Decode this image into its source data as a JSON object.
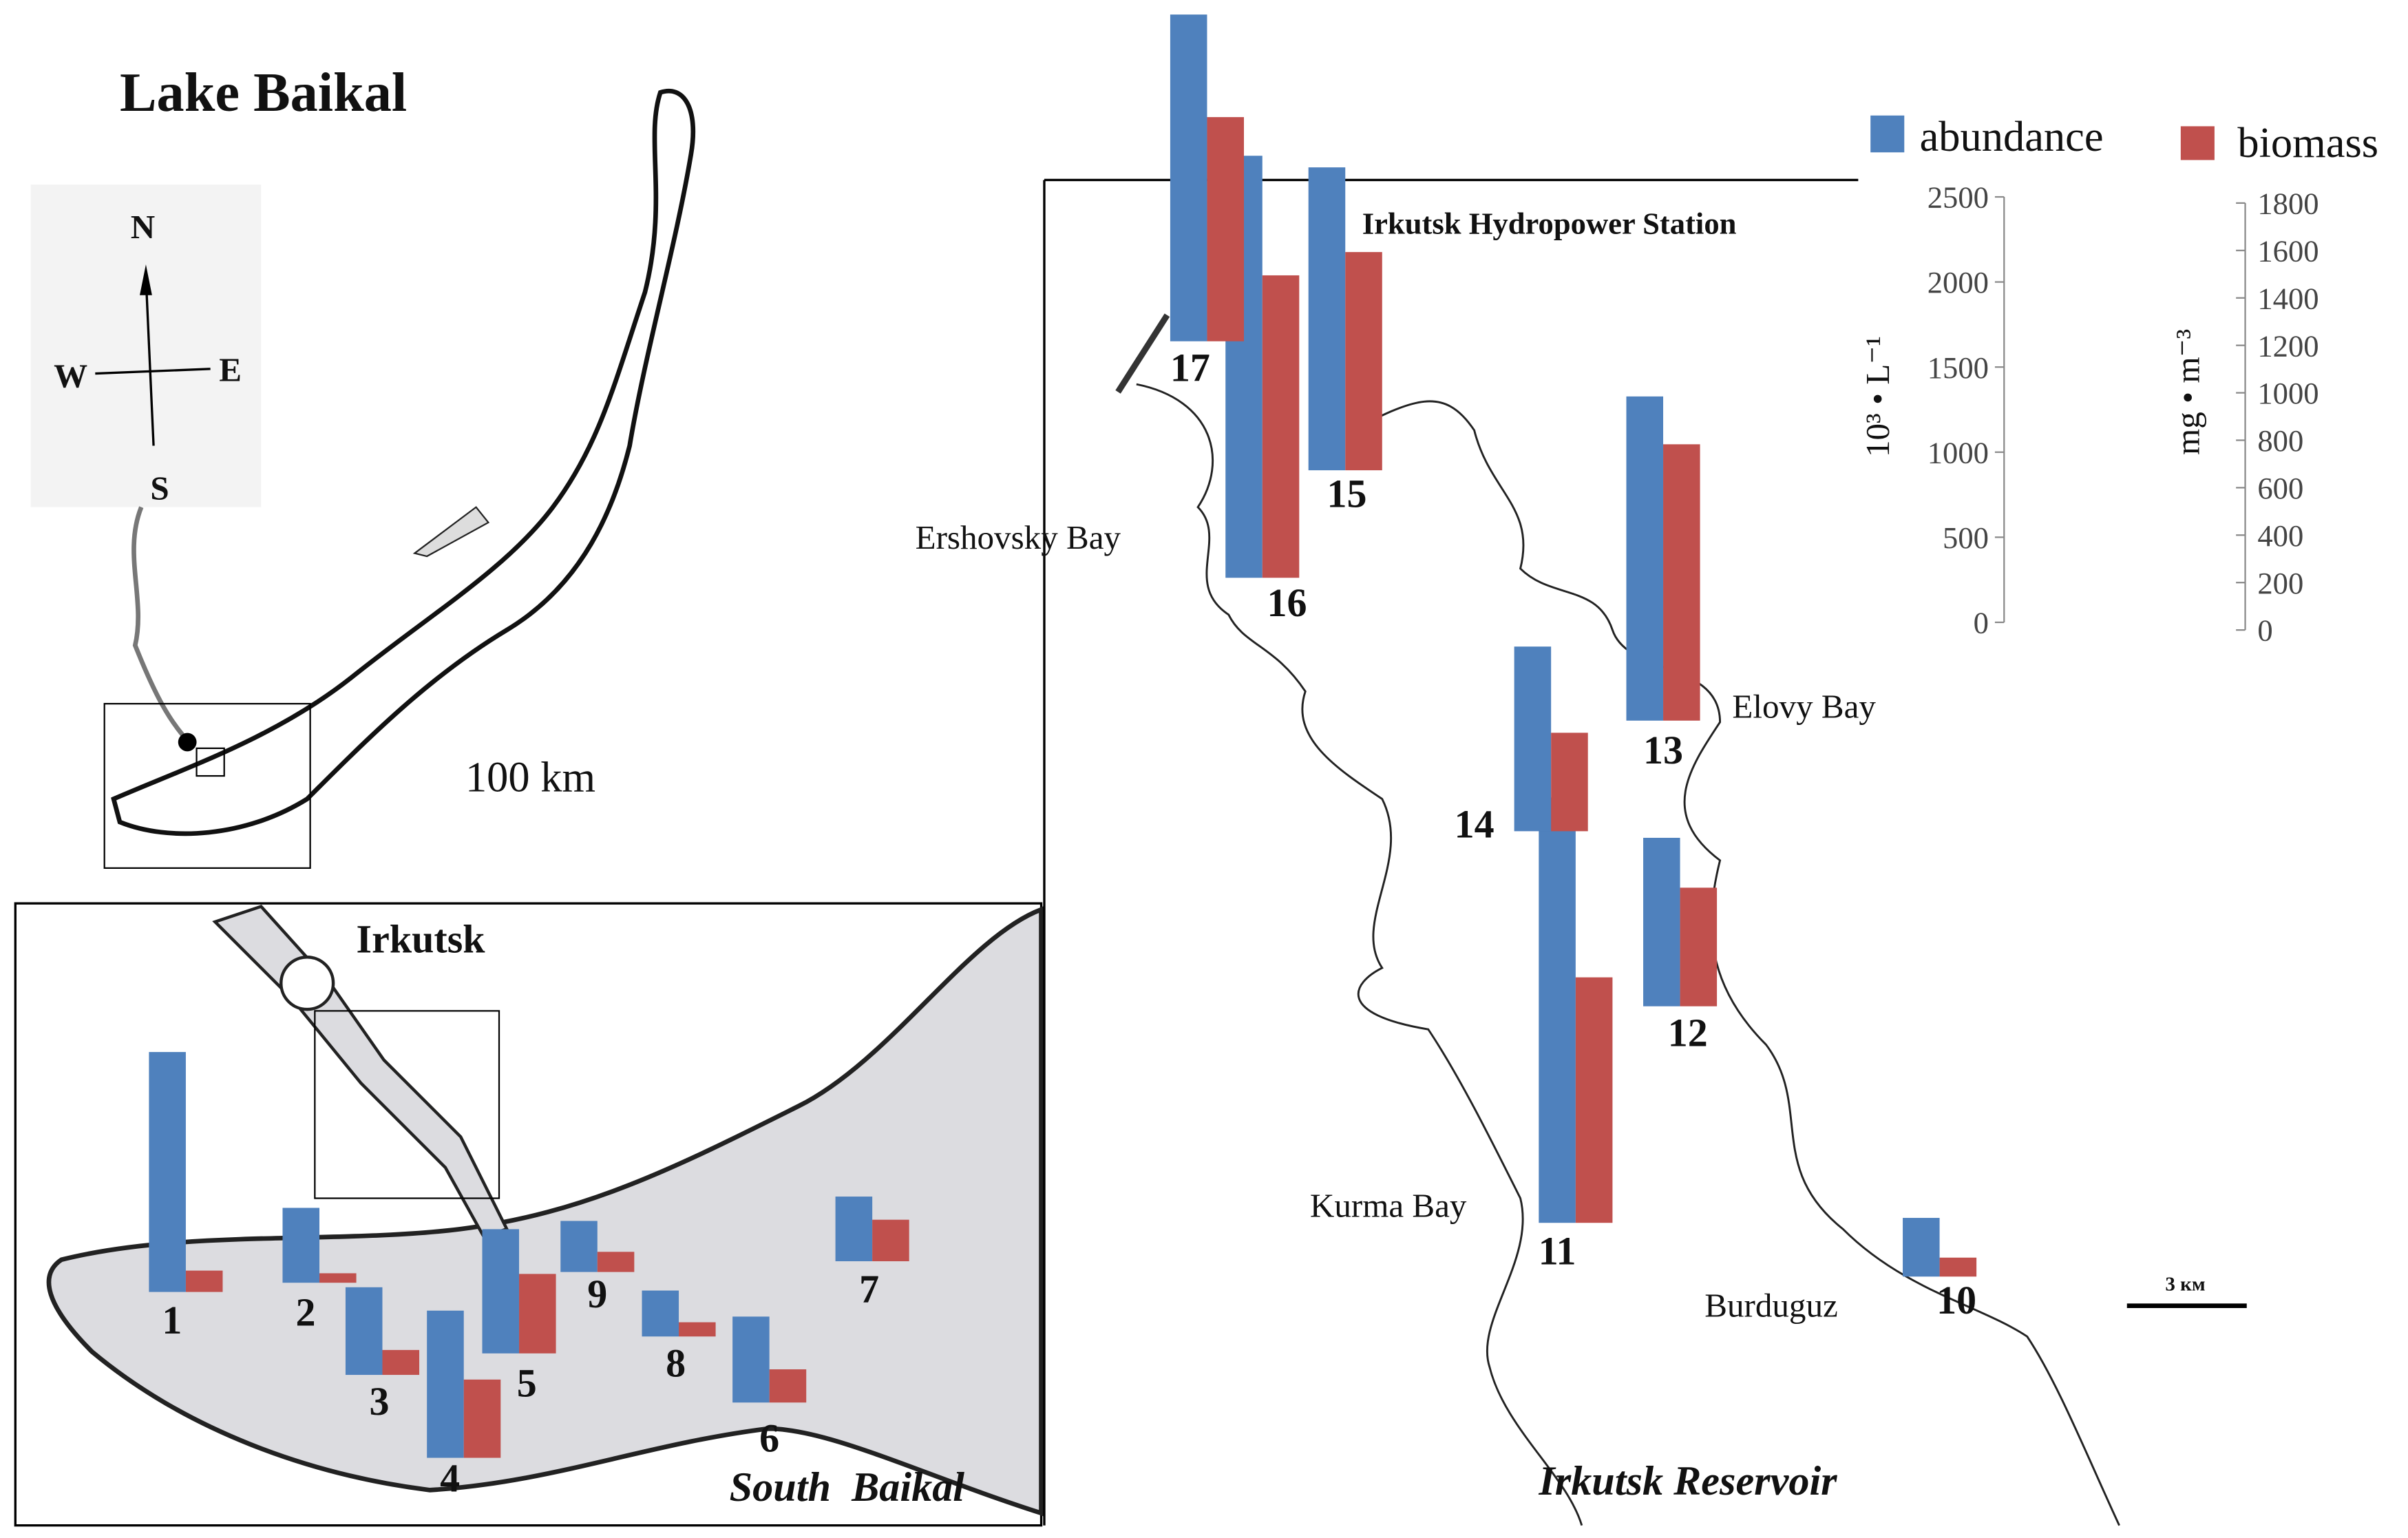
{
  "title": "Lake Baikal",
  "compass": {
    "n": "N",
    "s": "S",
    "e": "E",
    "w": "W"
  },
  "scale_main": "100 km",
  "scale_reservoir": "3 км",
  "places": {
    "irkutsk": "Irkutsk",
    "south_baikal": "South  Baikal",
    "hydropower": "Irkutsk Hydropower Station",
    "ershovsky": "Ershovsky Bay",
    "elovy": "Elovy Bay",
    "kurma": "Kurma Bay",
    "burduguz": "Burduguz",
    "reservoir": "Irkutsk Reservoir"
  },
  "chart_data": {
    "type": "bar",
    "categories": [
      "1",
      "2",
      "3",
      "4",
      "5",
      "6",
      "7",
      "8",
      "9",
      "10",
      "11",
      "12",
      "13",
      "14",
      "15",
      "16",
      "17"
    ],
    "series": [
      {
        "name": "abundance",
        "color": "#4f81bd",
        "values": [
          1410,
          440,
          515,
          865,
          730,
          505,
          380,
          270,
          300,
          345,
          2500,
          990,
          1905,
          1085,
          1780,
          2480,
          1920
        ]
      },
      {
        "name": "biomass",
        "color": "#c0504d",
        "axis": "y2",
        "values": [
          90,
          40,
          105,
          330,
          335,
          140,
          175,
          60,
          85,
          80,
          1035,
          500,
          1165,
          415,
          920,
          1275,
          945
        ]
      }
    ],
    "ylim": [
      0,
      2500
    ],
    "yticks": [
      0,
      500,
      1000,
      1500,
      2000,
      2500
    ],
    "ylabel": "10³ • L⁻¹",
    "y2lim": [
      0,
      1800
    ],
    "y2ticks": [
      0,
      200,
      400,
      600,
      800,
      1000,
      1200,
      1400,
      1600,
      1800
    ],
    "y2label": "mg • m⁻³"
  }
}
